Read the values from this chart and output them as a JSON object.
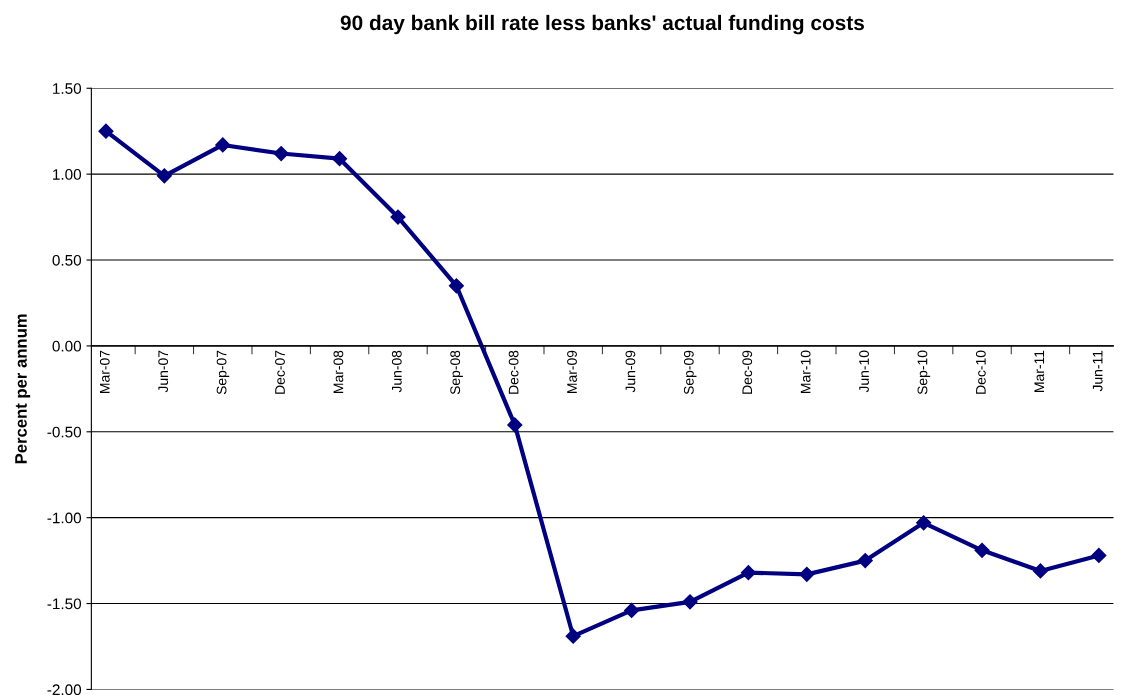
{
  "chart_data": {
    "type": "line",
    "title": "90 day bank bill rate less banks' actual funding costs",
    "ylabel": "Percent per annum",
    "categories": [
      "Mar-07",
      "Jun-07",
      "Sep-07",
      "Dec-07",
      "Mar-08",
      "Jun-08",
      "Sep-08",
      "Dec-08",
      "Mar-09",
      "Jun-09",
      "Sep-09",
      "Dec-09",
      "Mar-10",
      "Jun-10",
      "Sep-10",
      "Dec-10",
      "Mar-11",
      "Jun-11"
    ],
    "series": [
      {
        "color": "#000080",
        "values": [
          1.25,
          0.99,
          1.17,
          1.12,
          1.09,
          0.75,
          0.35,
          -0.46,
          -1.69,
          -1.54,
          -1.49,
          -1.32,
          -1.33,
          -1.25,
          -1.03,
          -1.19,
          -1.31,
          -1.22
        ]
      }
    ],
    "ylim": [
      -2.0,
      1.5
    ],
    "yticks": [
      {
        "value": -2.0,
        "label": "-2.00"
      },
      {
        "value": -1.5,
        "label": "-1.50"
      },
      {
        "value": -1.0,
        "label": "-1.00"
      },
      {
        "value": -0.5,
        "label": "-0.50"
      },
      {
        "value": 0.0,
        "label": "0.00"
      },
      {
        "value": 0.5,
        "label": "0.50"
      },
      {
        "value": 1.0,
        "label": "1.00"
      },
      {
        "value": 1.5,
        "label": "1.50"
      }
    ],
    "grid": "y",
    "marker": "diamond",
    "line_style": "solid"
  }
}
